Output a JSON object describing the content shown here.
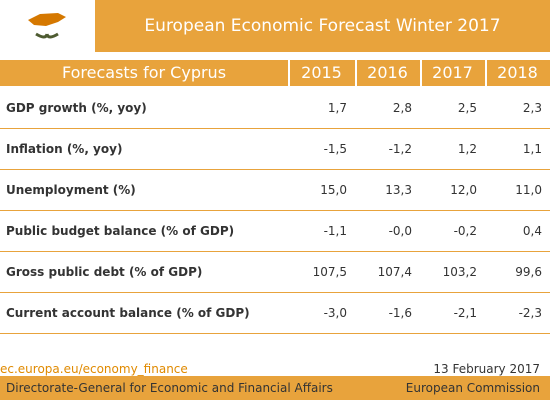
{
  "header": {
    "title": "European Economic Forecast Winter 2017"
  },
  "table": {
    "caption": "Forecasts for Cyprus",
    "columns": [
      "2015",
      "2016",
      "2017",
      "2018"
    ],
    "rows": [
      [
        "GDP growth (%, yoy)",
        "1,7",
        "2,8",
        "2,5",
        "2,3"
      ],
      [
        "Inflation (%, yoy)",
        "-1,5",
        "-1,2",
        "1,2",
        "1,1"
      ],
      [
        "Unemployment (%)",
        "15,0",
        "13,3",
        "12,0",
        "11,0"
      ],
      [
        "Public budget balance (% of GDP)",
        "-1,1",
        "-0,0",
        "-0,2",
        "0,4"
      ],
      [
        "Gross public debt (% of GDP)",
        "107,5",
        "107,4",
        "103,2",
        "99,6"
      ],
      [
        "Current account balance (% of GDP)",
        "-3,0",
        "-1,6",
        "-2,1",
        "-2,3"
      ]
    ]
  },
  "footer": {
    "link": "ec.europa.eu/economy_finance",
    "date": "13 February 2017",
    "left": "Directorate-General for Economic and Financial Affairs",
    "right": "European Commission"
  }
}
